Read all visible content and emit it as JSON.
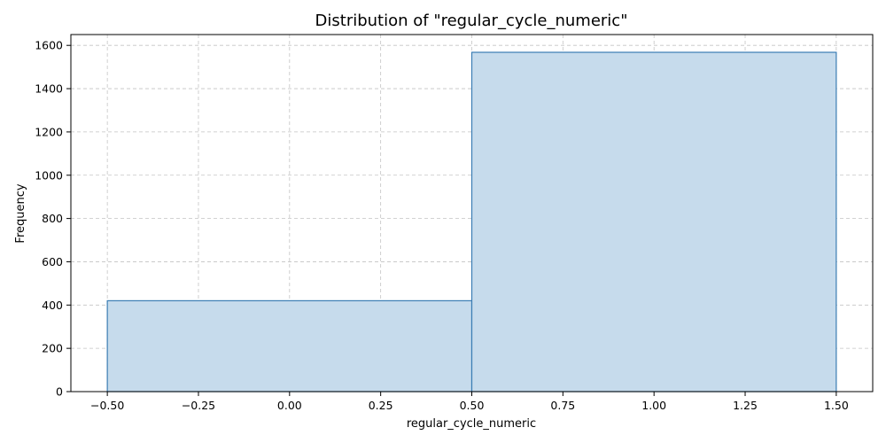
{
  "chart_data": {
    "type": "bar",
    "title": "Distribution of \"regular_cycle_numeric\"",
    "xlabel": "regular_cycle_numeric",
    "ylabel": "Frequency",
    "xlim": [
      -0.6,
      1.6
    ],
    "ylim": [
      0,
      1650
    ],
    "bins": [
      {
        "x0": -0.5,
        "x1": 0.5,
        "value": 420
      },
      {
        "x0": 0.5,
        "x1": 1.5,
        "value": 1568
      }
    ],
    "xticks": [
      -0.5,
      -0.25,
      0.0,
      0.25,
      0.5,
      0.75,
      1.0,
      1.25,
      1.5
    ],
    "xtick_labels": [
      "−0.50",
      "−0.25",
      "0.00",
      "0.25",
      "0.50",
      "0.75",
      "1.00",
      "1.25",
      "1.50"
    ],
    "yticks": [
      0,
      200,
      400,
      600,
      800,
      1000,
      1200,
      1400,
      1600
    ],
    "ytick_labels": [
      "0",
      "200",
      "400",
      "600",
      "800",
      "1000",
      "1200",
      "1400",
      "1600"
    ],
    "grid": true,
    "colors": {
      "bar_fill": "#c6dbec",
      "bar_edge": "#3b7db4"
    }
  }
}
